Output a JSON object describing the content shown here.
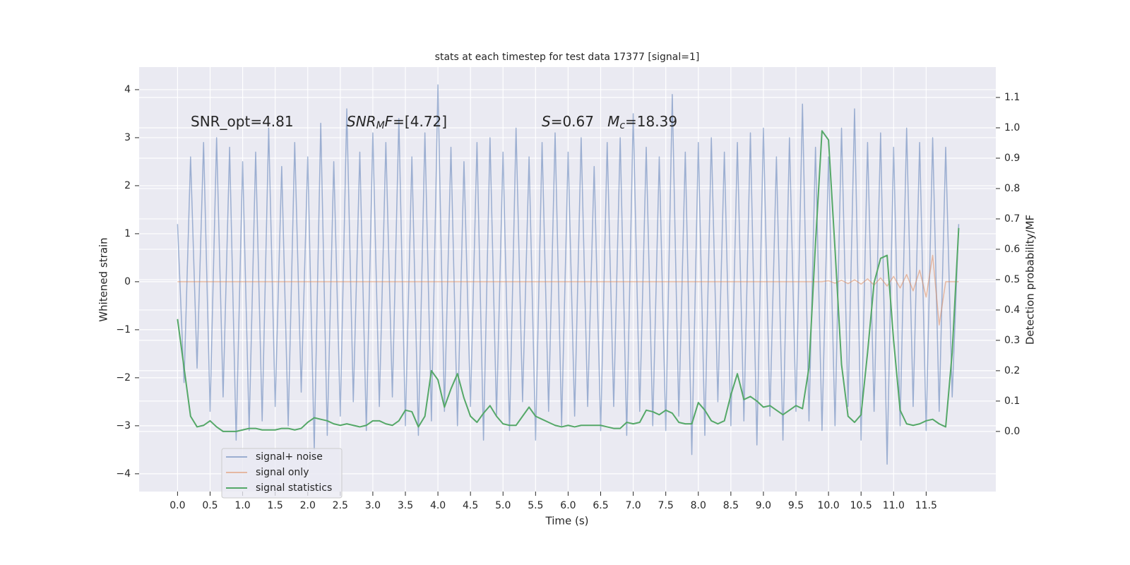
{
  "chart_data": {
    "type": "line",
    "title": "stats at each timestep for test data 17377 [signal=1]",
    "xlabel": "Time (s)",
    "ylabel": "Whitened strain",
    "y2label": "Detection probability/MF",
    "annotations": [
      {
        "parts": [
          {
            "text": "SNR_opt=4.81"
          }
        ]
      },
      {
        "parts": [
          {
            "text": "SNR",
            "style": "italic"
          },
          {
            "text": "M",
            "style": "italic-sub"
          },
          {
            "text": "F",
            "style": "italic"
          },
          {
            "text": "=[4.72]"
          }
        ]
      },
      {
        "parts": [
          {
            "text": "S",
            "style": "italic"
          },
          {
            "text": "=0.67   "
          },
          {
            "text": "M",
            "style": "italic"
          },
          {
            "text": "c",
            "style": "italic-sub"
          },
          {
            "text": "=18.39"
          }
        ]
      }
    ],
    "xlim": [
      -0.59,
      12.57
    ],
    "ylim": [
      -4.37,
      4.47
    ],
    "y2lim": [
      -0.198,
      1.2
    ],
    "xticks": [
      {
        "value": 0,
        "label": "0.0"
      },
      0.5,
      {
        "value": 1,
        "label": "1.0"
      },
      1.5,
      {
        "value": 2,
        "label": "2.0"
      },
      2.5,
      {
        "value": 3,
        "label": "3.0"
      },
      3.5,
      {
        "value": 4,
        "label": "4.0"
      },
      4.5,
      {
        "value": 5,
        "label": "5.0"
      },
      5.5,
      {
        "value": 6,
        "label": "6.0"
      },
      6.5,
      {
        "value": 7,
        "label": "7.0"
      },
      7.5,
      {
        "value": 8,
        "label": "8.0"
      },
      8.5,
      {
        "value": 9,
        "label": "9.0"
      },
      9.5,
      {
        "value": 10,
        "label": "10.0"
      },
      10.5,
      {
        "value": 11,
        "label": "11.0"
      },
      11.5
    ],
    "yticks": [
      {
        "value": -4,
        "label": "−4"
      },
      {
        "value": -3,
        "label": "−3"
      },
      {
        "value": -2,
        "label": "−2"
      },
      {
        "value": -1,
        "label": "−1"
      },
      0,
      1,
      2,
      3,
      4
    ],
    "y2ticks": [
      {
        "value": 0,
        "label": "0.0"
      },
      0.1,
      0.2,
      0.3,
      0.4,
      0.5,
      0.6,
      0.7,
      0.8,
      0.9,
      {
        "value": 1,
        "label": "1.0"
      },
      1.1
    ],
    "grid": true,
    "x": [
      0,
      0.1,
      0.2,
      0.3,
      0.4,
      0.5,
      0.6,
      0.7,
      0.8,
      0.9,
      1,
      1.1,
      1.2,
      1.3,
      1.4,
      1.5,
      1.6,
      1.7,
      1.8,
      1.9,
      2,
      2.1,
      2.2,
      2.3,
      2.4,
      2.5,
      2.6,
      2.7,
      2.8,
      2.9,
      3,
      3.1,
      3.2,
      3.3,
      3.4,
      3.5,
      3.6,
      3.7,
      3.8,
      3.9,
      4,
      4.1,
      4.2,
      4.3,
      4.4,
      4.5,
      4.6,
      4.7,
      4.8,
      4.9,
      5,
      5.1,
      5.2,
      5.3,
      5.4,
      5.5,
      5.6,
      5.7,
      5.8,
      5.9,
      6,
      6.1,
      6.2,
      6.3,
      6.4,
      6.5,
      6.6,
      6.7,
      6.8,
      6.9,
      7,
      7.1,
      7.2,
      7.3,
      7.4,
      7.5,
      7.6,
      7.7,
      7.8,
      7.9,
      8,
      8.1,
      8.2,
      8.3,
      8.4,
      8.5,
      8.6,
      8.7,
      8.8,
      8.9,
      9,
      9.1,
      9.2,
      9.3,
      9.4,
      9.5,
      9.6,
      9.7,
      9.8,
      9.9,
      10,
      10.1,
      10.2,
      10.3,
      10.4,
      10.5,
      10.6,
      10.7,
      10.8,
      10.9,
      11,
      11.1,
      11.2,
      11.3,
      11.4,
      11.5,
      11.6,
      11.7,
      11.8,
      11.9,
      12
    ],
    "series": [
      {
        "name": "signal+ noise",
        "color": "#4c72b0",
        "opacity": 0.5,
        "values": [
          1.2,
          -2.1,
          2.6,
          -1.8,
          2.9,
          -2.7,
          3.0,
          -2.4,
          2.8,
          -3.3,
          2.5,
          -3.1,
          2.7,
          -2.9,
          3.2,
          -2.6,
          2.4,
          -3.0,
          2.9,
          -2.3,
          2.6,
          -3.5,
          3.3,
          -3.2,
          2.5,
          -2.8,
          3.6,
          -2.5,
          2.7,
          -3.1,
          3.1,
          -2.6,
          2.9,
          -2.4,
          3.4,
          -3.0,
          2.6,
          -3.2,
          3.1,
          -2.9,
          4.1,
          -2.7,
          2.8,
          -3.0,
          2.5,
          -2.6,
          2.9,
          -3.3,
          3.0,
          -2.8,
          2.7,
          -3.1,
          3.2,
          -2.5,
          2.6,
          -3.3,
          2.9,
          -2.7,
          3.1,
          -3.0,
          2.7,
          -2.8,
          3.0,
          -2.6,
          2.4,
          -3.1,
          2.9,
          -2.6,
          3.0,
          -3.2,
          3.5,
          -2.7,
          2.8,
          -3.0,
          2.6,
          -3.1,
          3.9,
          -2.8,
          2.7,
          -3.6,
          2.9,
          -3.2,
          3.0,
          -2.5,
          2.7,
          -3.0,
          2.9,
          -2.9,
          3.1,
          -3.4,
          3.2,
          -2.8,
          2.6,
          -3.3,
          3.0,
          -2.7,
          3.7,
          -2.9,
          2.8,
          -3.1,
          2.6,
          -3.0,
          3.2,
          -2.6,
          3.6,
          -3.3,
          2.9,
          -2.7,
          3.1,
          -3.8,
          2.8,
          -3.0,
          3.2,
          -2.6,
          2.9,
          -3.1,
          3.0,
          -2.7,
          2.8,
          -2.4,
          1.2
        ]
      },
      {
        "name": "signal only",
        "color": "#dd8452",
        "opacity": 0.5,
        "values": [
          0,
          0,
          0,
          0,
          0,
          0,
          0,
          0,
          0,
          0,
          0,
          0,
          0,
          0,
          0,
          0,
          0,
          0,
          0,
          0,
          0,
          0,
          0,
          0,
          0,
          0,
          0,
          0,
          0,
          0,
          0,
          0,
          0,
          0,
          0,
          0,
          0,
          0,
          0,
          0,
          0,
          0,
          0,
          0,
          0,
          0,
          0,
          0,
          0,
          0,
          0,
          0,
          0,
          0,
          0,
          0,
          0,
          0,
          0,
          0,
          0,
          0,
          0,
          0,
          0,
          0,
          0,
          0,
          0,
          0,
          0,
          0,
          0,
          0,
          0,
          0,
          0,
          0,
          0,
          0,
          0,
          0,
          0,
          0,
          0,
          0,
          0,
          0,
          0,
          0,
          0,
          0,
          0,
          0,
          0,
          0,
          0,
          0,
          0,
          0,
          0.02,
          -0.03,
          0.03,
          -0.04,
          0.04,
          -0.05,
          0.06,
          -0.07,
          0.08,
          -0.09,
          0.11,
          -0.13,
          0.15,
          -0.19,
          0.24,
          -0.32,
          0.55,
          -0.9,
          0,
          0,
          0
        ]
      },
      {
        "name": "signal statistics",
        "color": "#55a868",
        "opacity": 1,
        "axis": "y2",
        "values": [
          0.37,
          0.21,
          0.05,
          0.015,
          0.02,
          0.035,
          0.015,
          0.0,
          0.0,
          0.0,
          0.005,
          0.01,
          0.01,
          0.005,
          0.005,
          0.005,
          0.01,
          0.01,
          0.005,
          0.01,
          0.03,
          0.045,
          0.04,
          0.035,
          0.025,
          0.02,
          0.025,
          0.02,
          0.015,
          0.02,
          0.035,
          0.035,
          0.025,
          0.02,
          0.035,
          0.07,
          0.065,
          0.015,
          0.05,
          0.2,
          0.17,
          0.08,
          0.14,
          0.19,
          0.11,
          0.05,
          0.03,
          0.06,
          0.085,
          0.05,
          0.025,
          0.02,
          0.02,
          0.05,
          0.08,
          0.05,
          0.04,
          0.03,
          0.02,
          0.015,
          0.02,
          0.015,
          0.02,
          0.02,
          0.02,
          0.02,
          0.015,
          0.01,
          0.01,
          0.03,
          0.025,
          0.03,
          0.07,
          0.065,
          0.055,
          0.07,
          0.06,
          0.03,
          0.025,
          0.025,
          0.095,
          0.07,
          0.035,
          0.025,
          0.035,
          0.12,
          0.19,
          0.105,
          0.115,
          0.1,
          0.08,
          0.085,
          0.07,
          0.055,
          0.07,
          0.085,
          0.075,
          0.21,
          0.62,
          0.99,
          0.96,
          0.6,
          0.22,
          0.05,
          0.03,
          0.055,
          0.26,
          0.49,
          0.57,
          0.58,
          0.3,
          0.07,
          0.025,
          0.02,
          0.025,
          0.035,
          0.04,
          0.025,
          0.015,
          0.26,
          0.67
        ]
      }
    ]
  }
}
